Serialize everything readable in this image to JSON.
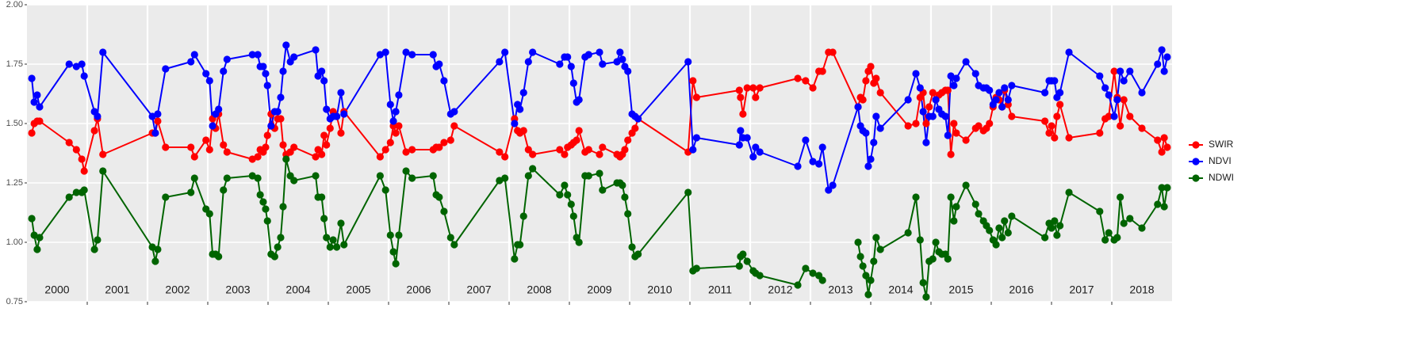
{
  "chart_data": {
    "type": "line",
    "x": [
      2000.08,
      2000.12,
      2000.17,
      2000.21,
      2000.7,
      2000.82,
      2000.91,
      2000.95,
      2001.12,
      2001.17,
      2001.26,
      2002.08,
      2002.13,
      2002.17,
      2002.3,
      2002.72,
      2002.78,
      2002.97,
      2003.03,
      2003.08,
      2003.13,
      2003.18,
      2003.26,
      2003.32,
      2003.74,
      2003.83,
      2003.87,
      2003.92,
      2003.96,
      2003.99,
      2004.05,
      2004.11,
      2004.16,
      2004.21,
      2004.25,
      2004.3,
      2004.37,
      2004.43,
      2004.79,
      2004.83,
      2004.89,
      2004.93,
      2004.97,
      2005.03,
      2005.08,
      2005.14,
      2005.21,
      2005.26,
      2005.86,
      2005.95,
      2006.03,
      2006.08,
      2006.12,
      2006.17,
      2006.29,
      2006.39,
      2006.74,
      2006.79,
      2006.84,
      2006.92,
      2007.03,
      2007.09,
      2007.84,
      2007.93,
      2008.09,
      2008.14,
      2008.18,
      2008.24,
      2008.32,
      2008.39,
      2008.84,
      2008.92,
      2008.97,
      2009.03,
      2009.07,
      2009.12,
      2009.16,
      2009.26,
      2009.32,
      2009.5,
      2009.55,
      2009.79,
      2009.84,
      2009.88,
      2009.92,
      2009.97,
      2010.04,
      2010.09,
      2010.14,
      2010.97,
      2011.05,
      2011.11,
      2011.82,
      2011.84,
      2011.88,
      2011.95,
      2012.05,
      2012.09,
      2012.16,
      2012.79,
      2012.92,
      2013.04,
      2013.14,
      2013.2,
      2013.3,
      2013.37,
      2013.79,
      2013.83,
      2013.87,
      2013.92,
      2013.96,
      2014,
      2014.05,
      2014.09,
      2014.16,
      2014.62,
      2014.75,
      2014.82,
      2014.87,
      2014.92,
      2014.97,
      2015.03,
      2015.08,
      2015.13,
      2015.18,
      2015.24,
      2015.28,
      2015.33,
      2015.38,
      2015.42,
      2015.58,
      2015.74,
      2015.79,
      2015.87,
      2015.92,
      2015.97,
      2016.03,
      2016.08,
      2016.13,
      2016.18,
      2016.22,
      2016.28,
      2016.34,
      2016.89,
      2016.96,
      2017,
      2017.05,
      2017.09,
      2017.14,
      2017.29,
      2017.8,
      2017.89,
      2017.95,
      2018.04,
      2018.09,
      2018.14,
      2018.2,
      2018.3,
      2018.5,
      2018.76,
      2018.83,
      2018.87,
      2018.92
    ],
    "series": [
      {
        "name": "SWIR",
        "color": "#ff0000",
        "values": [
          1.46,
          1.5,
          1.51,
          1.51,
          1.42,
          1.39,
          1.35,
          1.3,
          1.47,
          1.52,
          1.37,
          1.46,
          1.46,
          1.51,
          1.4,
          1.4,
          1.36,
          1.43,
          1.39,
          1.52,
          1.48,
          1.54,
          1.41,
          1.38,
          1.35,
          1.36,
          1.39,
          1.38,
          1.4,
          1.45,
          1.54,
          1.48,
          1.52,
          1.52,
          1.41,
          1.37,
          1.38,
          1.4,
          1.36,
          1.39,
          1.37,
          1.45,
          1.41,
          1.48,
          1.55,
          1.53,
          1.46,
          1.55,
          1.36,
          1.39,
          1.42,
          1.49,
          1.46,
          1.49,
          1.38,
          1.39,
          1.39,
          1.4,
          1.4,
          1.42,
          1.43,
          1.49,
          1.38,
          1.36,
          1.52,
          1.47,
          1.46,
          1.47,
          1.39,
          1.37,
          1.39,
          1.37,
          1.4,
          1.41,
          1.42,
          1.43,
          1.47,
          1.38,
          1.39,
          1.37,
          1.4,
          1.37,
          1.36,
          1.37,
          1.39,
          1.43,
          1.46,
          1.48,
          1.52,
          1.38,
          1.68,
          1.61,
          1.64,
          1.61,
          1.54,
          1.65,
          1.65,
          1.61,
          1.65,
          1.69,
          1.68,
          1.65,
          1.72,
          1.72,
          1.8,
          1.8,
          1.57,
          1.61,
          1.6,
          1.68,
          1.72,
          1.74,
          1.67,
          1.69,
          1.63,
          1.49,
          1.5,
          1.61,
          1.63,
          1.5,
          1.57,
          1.63,
          1.6,
          1.62,
          1.63,
          1.64,
          1.64,
          1.37,
          1.5,
          1.46,
          1.43,
          1.48,
          1.49,
          1.47,
          1.48,
          1.5,
          1.57,
          1.61,
          1.6,
          1.57,
          1.64,
          1.58,
          1.53,
          1.51,
          1.46,
          1.49,
          1.44,
          1.53,
          1.58,
          1.44,
          1.46,
          1.52,
          1.53,
          1.72,
          1.61,
          1.49,
          1.6,
          1.53,
          1.48,
          1.43,
          1.38,
          1.44,
          1.4
        ]
      },
      {
        "name": "NDVI",
        "color": "#0000ff",
        "values": [
          1.69,
          1.59,
          1.62,
          1.57,
          1.75,
          1.74,
          1.75,
          1.7,
          1.55,
          1.53,
          1.8,
          1.53,
          1.46,
          1.54,
          1.73,
          1.76,
          1.79,
          1.71,
          1.68,
          1.49,
          1.54,
          1.56,
          1.72,
          1.77,
          1.79,
          1.79,
          1.74,
          1.74,
          1.71,
          1.66,
          1.49,
          1.55,
          1.55,
          1.61,
          1.72,
          1.83,
          1.76,
          1.78,
          1.81,
          1.7,
          1.72,
          1.68,
          1.56,
          1.52,
          1.53,
          1.53,
          1.63,
          1.54,
          1.79,
          1.8,
          1.58,
          1.51,
          1.55,
          1.62,
          1.8,
          1.79,
          1.79,
          1.74,
          1.75,
          1.68,
          1.54,
          1.55,
          1.76,
          1.8,
          1.5,
          1.58,
          1.56,
          1.63,
          1.76,
          1.8,
          1.75,
          1.78,
          1.78,
          1.74,
          1.67,
          1.59,
          1.6,
          1.78,
          1.79,
          1.8,
          1.75,
          1.76,
          1.8,
          1.77,
          1.74,
          1.72,
          1.54,
          1.53,
          1.52,
          1.76,
          1.39,
          1.44,
          1.41,
          1.47,
          1.44,
          1.44,
          1.36,
          1.4,
          1.38,
          1.32,
          1.43,
          1.34,
          1.33,
          1.4,
          1.22,
          1.24,
          1.57,
          1.49,
          1.47,
          1.46,
          1.32,
          1.35,
          1.42,
          1.53,
          1.48,
          1.6,
          1.71,
          1.65,
          1.55,
          1.42,
          1.53,
          1.53,
          1.6,
          1.56,
          1.54,
          1.53,
          1.45,
          1.7,
          1.66,
          1.69,
          1.76,
          1.71,
          1.66,
          1.65,
          1.65,
          1.64,
          1.58,
          1.6,
          1.63,
          1.57,
          1.65,
          1.6,
          1.66,
          1.63,
          1.68,
          1.68,
          1.68,
          1.61,
          1.63,
          1.8,
          1.7,
          1.65,
          1.62,
          1.53,
          1.6,
          1.72,
          1.68,
          1.72,
          1.63,
          1.75,
          1.81,
          1.72,
          1.78
        ]
      },
      {
        "name": "NDWI",
        "color": "#006400",
        "values": [
          1.1,
          1.03,
          0.97,
          1.02,
          1.19,
          1.21,
          1.21,
          1.22,
          0.97,
          1.01,
          1.3,
          0.98,
          0.92,
          0.97,
          1.19,
          1.21,
          1.27,
          1.14,
          1.12,
          0.95,
          0.95,
          0.94,
          1.22,
          1.27,
          1.28,
          1.27,
          1.2,
          1.17,
          1.14,
          1.09,
          0.95,
          0.94,
          0.98,
          1.02,
          1.15,
          1.35,
          1.28,
          1.26,
          1.28,
          1.19,
          1.19,
          1.1,
          1.02,
          0.98,
          1.01,
          0.98,
          1.08,
          0.99,
          1.28,
          1.22,
          1.03,
          0.96,
          0.91,
          1.03,
          1.3,
          1.27,
          1.28,
          1.2,
          1.19,
          1.13,
          1.02,
          0.99,
          1.26,
          1.27,
          0.93,
          0.99,
          0.99,
          1.11,
          1.28,
          1.31,
          1.2,
          1.24,
          1.2,
          1.16,
          1.11,
          1.02,
          1.0,
          1.28,
          1.28,
          1.29,
          1.22,
          1.25,
          1.25,
          1.24,
          1.19,
          1.12,
          0.98,
          0.94,
          0.95,
          1.21,
          0.88,
          0.89,
          0.9,
          0.94,
          0.95,
          0.92,
          0.88,
          0.87,
          0.86,
          0.82,
          0.89,
          0.87,
          0.86,
          0.84,
          null,
          null,
          1.0,
          0.94,
          0.9,
          0.86,
          0.78,
          0.84,
          0.92,
          1.02,
          0.97,
          1.04,
          1.19,
          1.01,
          0.83,
          0.77,
          0.92,
          0.93,
          1.0,
          0.96,
          0.95,
          0.95,
          0.93,
          1.19,
          1.09,
          1.15,
          1.24,
          1.16,
          1.12,
          1.09,
          1.07,
          1.05,
          1.01,
          0.99,
          1.06,
          1.02,
          1.09,
          1.04,
          1.11,
          1.02,
          1.08,
          1.06,
          1.09,
          1.03,
          1.07,
          1.21,
          1.13,
          1.01,
          1.04,
          1.01,
          1.02,
          1.19,
          1.08,
          1.1,
          1.06,
          1.16,
          1.23,
          1.15,
          1.23
        ]
      }
    ],
    "xlim": [
      2000,
      2019
    ],
    "xticks": [
      {
        "value": 2000.5,
        "label": "2000"
      },
      {
        "value": 2001.5,
        "label": "2001"
      },
      {
        "value": 2002.5,
        "label": "2002"
      },
      {
        "value": 2003.5,
        "label": "2003"
      },
      {
        "value": 2004.5,
        "label": "2004"
      },
      {
        "value": 2005.5,
        "label": "2005"
      },
      {
        "value": 2006.5,
        "label": "2006"
      },
      {
        "value": 2007.5,
        "label": "2007"
      },
      {
        "value": 2008.5,
        "label": "2008"
      },
      {
        "value": 2009.5,
        "label": "2009"
      },
      {
        "value": 2010.5,
        "label": "2010"
      },
      {
        "value": 2011.5,
        "label": "2011"
      },
      {
        "value": 2012.5,
        "label": "2012"
      },
      {
        "value": 2013.5,
        "label": "2013"
      },
      {
        "value": 2014.5,
        "label": "2014"
      },
      {
        "value": 2015.5,
        "label": "2015"
      },
      {
        "value": 2016.5,
        "label": "2016"
      },
      {
        "value": 2017.5,
        "label": "2017"
      },
      {
        "value": 2018.5,
        "label": "2018"
      }
    ],
    "xgrid": [
      2001,
      2002,
      2003,
      2004,
      2005,
      2006,
      2007,
      2008,
      2009,
      2010,
      2011,
      2012,
      2013,
      2014,
      2015,
      2016,
      2017,
      2018
    ],
    "ylim": [
      0.75,
      2.0
    ],
    "yticks": [
      {
        "value": 0.75,
        "label": "0.75"
      },
      {
        "value": 1,
        "label": "1.00"
      },
      {
        "value": 1.25,
        "label": "1.25"
      },
      {
        "value": 1.5,
        "label": "1.50"
      },
      {
        "value": 1.75,
        "label": "1.75"
      },
      {
        "value": 2,
        "label": "2.00"
      }
    ],
    "grid": true,
    "legend": "right"
  }
}
